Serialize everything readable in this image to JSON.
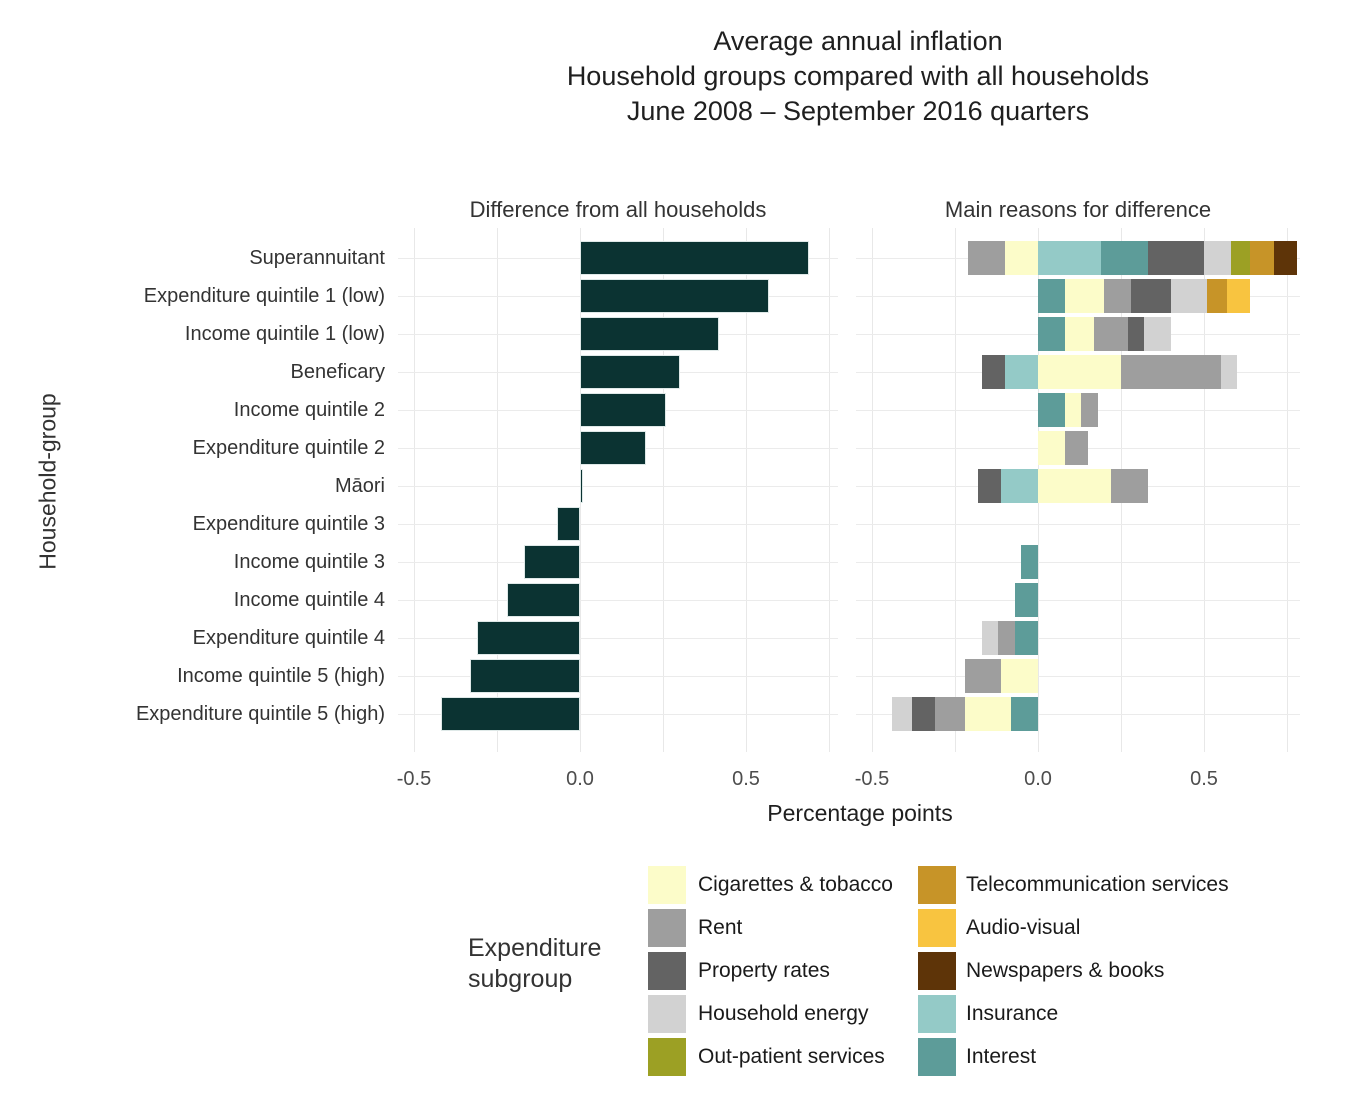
{
  "title": {
    "line1": "Average annual inflation",
    "line2": "Household groups compared with all households",
    "line3": "June 2008 – September 2016 quarters"
  },
  "chart_data": {
    "type": "bar",
    "orientation": "horizontal",
    "xlabel": "Percentage points",
    "ylabel": "Household-group",
    "categories": [
      "Superannuitant",
      "Expenditure quintile 1 (low)",
      "Income quintile 1 (low)",
      "Beneficary",
      "Income quintile 2",
      "Expenditure quintile 2",
      "Māori",
      "Expenditure quintile 3",
      "Income quintile 3",
      "Income quintile 4",
      "Expenditure quintile 4",
      "Income quintile 5 (high)",
      "Expenditure quintile 5 (high)"
    ],
    "panels": [
      {
        "title": "Difference from all households"
      },
      {
        "title": "Main reasons for difference"
      }
    ],
    "difference_values": [
      0.69,
      0.57,
      0.42,
      0.3,
      0.26,
      0.2,
      0.01,
      -0.07,
      -0.17,
      -0.22,
      -0.31,
      -0.33,
      -0.42
    ],
    "reason_segments": [
      [
        {
          "subgroup": "Rent",
          "value": -0.11
        },
        {
          "subgroup": "Cigarettes & tobacco",
          "value": -0.1
        },
        {
          "subgroup": "Insurance",
          "value": 0.19
        },
        {
          "subgroup": "Interest",
          "value": 0.14
        },
        {
          "subgroup": "Property rates",
          "value": 0.17
        },
        {
          "subgroup": "Household energy",
          "value": 0.08
        },
        {
          "subgroup": "Out-patient services",
          "value": 0.06
        },
        {
          "subgroup": "Telecommunication services",
          "value": 0.07
        },
        {
          "subgroup": "Newspapers & books",
          "value": 0.07
        }
      ],
      [
        {
          "subgroup": "Interest",
          "value": 0.08
        },
        {
          "subgroup": "Cigarettes & tobacco",
          "value": 0.12
        },
        {
          "subgroup": "Rent",
          "value": 0.08
        },
        {
          "subgroup": "Property rates",
          "value": 0.12
        },
        {
          "subgroup": "Household energy",
          "value": 0.11
        },
        {
          "subgroup": "Telecommunication services",
          "value": 0.06
        },
        {
          "subgroup": "Audio-visual",
          "value": 0.07
        }
      ],
      [
        {
          "subgroup": "Interest",
          "value": 0.08
        },
        {
          "subgroup": "Cigarettes & tobacco",
          "value": 0.09
        },
        {
          "subgroup": "Rent",
          "value": 0.1
        },
        {
          "subgroup": "Property rates",
          "value": 0.05
        },
        {
          "subgroup": "Household energy",
          "value": 0.08
        }
      ],
      [
        {
          "subgroup": "Property rates",
          "value": -0.07
        },
        {
          "subgroup": "Insurance",
          "value": -0.1
        },
        {
          "subgroup": "Cigarettes & tobacco",
          "value": 0.25
        },
        {
          "subgroup": "Rent",
          "value": 0.3
        },
        {
          "subgroup": "Household energy",
          "value": 0.05
        }
      ],
      [
        {
          "subgroup": "Interest",
          "value": 0.08
        },
        {
          "subgroup": "Cigarettes & tobacco",
          "value": 0.05
        },
        {
          "subgroup": "Rent",
          "value": 0.05
        }
      ],
      [
        {
          "subgroup": "Cigarettes & tobacco",
          "value": 0.08
        },
        {
          "subgroup": "Rent",
          "value": 0.07
        }
      ],
      [
        {
          "subgroup": "Property rates",
          "value": -0.07
        },
        {
          "subgroup": "Insurance",
          "value": -0.11
        },
        {
          "subgroup": "Cigarettes & tobacco",
          "value": 0.22
        },
        {
          "subgroup": "Rent",
          "value": 0.11
        }
      ],
      [],
      [
        {
          "subgroup": "Interest",
          "value": -0.05
        }
      ],
      [
        {
          "subgroup": "Interest",
          "value": -0.07
        }
      ],
      [
        {
          "subgroup": "Household energy",
          "value": -0.05
        },
        {
          "subgroup": "Rent",
          "value": -0.05
        },
        {
          "subgroup": "Interest",
          "value": -0.07
        }
      ],
      [
        {
          "subgroup": "Rent",
          "value": -0.11
        },
        {
          "subgroup": "Cigarettes & tobacco",
          "value": -0.11
        }
      ],
      [
        {
          "subgroup": "Household energy",
          "value": -0.06
        },
        {
          "subgroup": "Property rates",
          "value": -0.07
        },
        {
          "subgroup": "Rent",
          "value": -0.09
        },
        {
          "subgroup": "Cigarettes & tobacco",
          "value": -0.14
        },
        {
          "subgroup": "Interest",
          "value": -0.08
        }
      ]
    ],
    "xticks": {
      "labels": [
        "-0.5",
        "0.0",
        "0.5"
      ],
      "values": [
        -0.5,
        0.0,
        0.5
      ]
    },
    "gridline_values": [
      -0.5,
      -0.25,
      0.0,
      0.25,
      0.5,
      0.75
    ],
    "colors": {
      "bar": "#0B3332",
      "grid": "#E8E8E8",
      "background": "#FFFFFF",
      "Cigarettes & tobacco": "#FCFCC9",
      "Rent": "#9E9E9E",
      "Property rates": "#636363",
      "Household energy": "#D2D2D2",
      "Out-patient services": "#9CA024",
      "Telecommunication services": "#C79428",
      "Audio-visual": "#F8C440",
      "Newspapers & books": "#5E3408",
      "Insurance": "#94CAC7",
      "Interest": "#5D9C99"
    },
    "legend": {
      "title_line1": "Expenditure",
      "title_line2": "subgroup",
      "columns": [
        [
          "Cigarettes & tobacco",
          "Rent",
          "Property rates",
          "Household energy",
          "Out-patient services"
        ],
        [
          "Telecommunication services",
          "Audio-visual",
          "Newspapers & books",
          "Insurance",
          "Interest"
        ]
      ]
    }
  }
}
